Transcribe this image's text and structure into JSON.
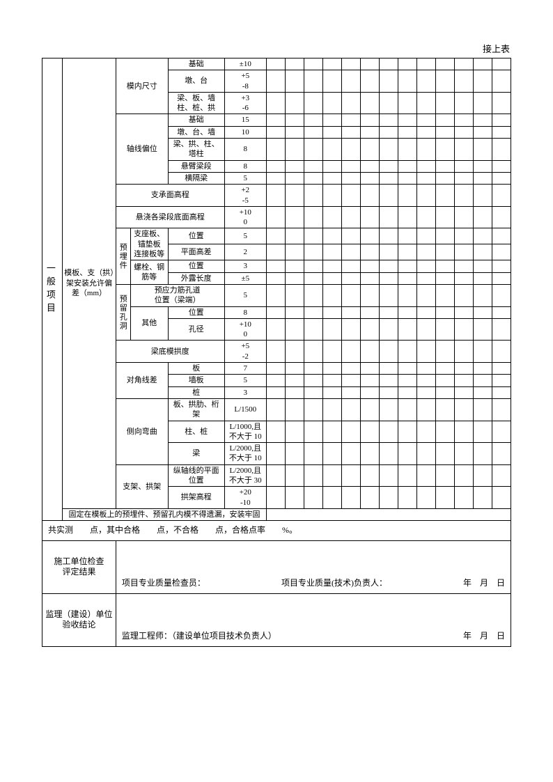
{
  "continue_label": "接上表",
  "section_header": "一般项目",
  "main_category": "模板、支（拱）架安装允许偏差（mm）",
  "groups": {
    "g1": {
      "label": "模内尺寸",
      "rows": [
        {
          "sub": "基础",
          "tol": "±10"
        },
        {
          "sub": "墩、台",
          "tol": "+5\n-8"
        },
        {
          "sub": "梁、板、墙\n柱、桩、拱",
          "tol": "+3\n-6"
        }
      ]
    },
    "g2": {
      "label": "轴线偏位",
      "rows": [
        {
          "sub": "基础",
          "tol": "15"
        },
        {
          "sub": "墩、台、墙",
          "tol": "10"
        },
        {
          "sub": "梁、拱、柱、塔柱",
          "tol": "8"
        },
        {
          "sub": "悬臂梁段",
          "tol": "8"
        },
        {
          "sub": "横隔梁",
          "tol": "5"
        }
      ]
    },
    "g3": {
      "label": "支承面高程",
      "tol": "+2\n-5"
    },
    "g4": {
      "label": "悬浇各梁段底面高程",
      "tol": "+10\n0"
    },
    "g5": {
      "label": "预埋件",
      "sub1": {
        "label": "支座板、锚垫板\n连接板等",
        "rows": [
          {
            "sub": "位置",
            "tol": "5"
          },
          {
            "sub": "平面高差",
            "tol": "2"
          }
        ]
      },
      "sub2": {
        "label": "螺栓、钢筋等",
        "rows": [
          {
            "sub": "位置",
            "tol": "3"
          },
          {
            "sub": "外露长度",
            "tol": "±5"
          }
        ]
      }
    },
    "g6": {
      "label": "预留孔洞",
      "row1": {
        "label": "预应力筋孔道\n位置（梁端）",
        "tol": "5"
      },
      "sub": {
        "label": "其他",
        "rows": [
          {
            "sub": "位置",
            "tol": "8"
          },
          {
            "sub": "孔径",
            "tol": "+10\n0"
          }
        ]
      }
    },
    "g7": {
      "label": "梁底模拱度",
      "tol": "+5\n-2"
    },
    "g8": {
      "label": "对角线差",
      "rows": [
        {
          "sub": "板",
          "tol": "7"
        },
        {
          "sub": "墙板",
          "tol": "5"
        },
        {
          "sub": "桩",
          "tol": "3"
        }
      ]
    },
    "g9": {
      "label": "侧向弯曲",
      "rows": [
        {
          "sub": "板、拱肋、桁架",
          "tol": "L/1500"
        },
        {
          "sub": "柱、桩",
          "tol": "L/1000,且\n不大于 10"
        },
        {
          "sub": "梁",
          "tol": "L/2000,且\n不大于 10"
        }
      ]
    },
    "g10": {
      "label": "支架、拱架",
      "row1": {
        "sub": "纵轴线的平面位置",
        "tol": "L/2000,且\n不大于 30"
      },
      "row2": {
        "sub": "拱架高程",
        "tol": "+20\n-10"
      }
    }
  },
  "note_row": "固定在模板上的预埋件、预留孔内模不得遗漏，安装牢固",
  "measure_row": "共实测　　点，其中合格　　点，不合格　　点，合格点率　　%。",
  "sig1": {
    "title": "施工单位检查\n评定结果",
    "line_a": "项目专业质量检查员：",
    "line_b": "项目专业质量(技术)负责人：",
    "date": "年　月　日"
  },
  "sig2": {
    "title": "监理（建设）单位\n验收结论",
    "line_a": "监理工程师：（建设单位项目技术负责人）",
    "date": "年　月　日"
  },
  "grid_cols": 13
}
